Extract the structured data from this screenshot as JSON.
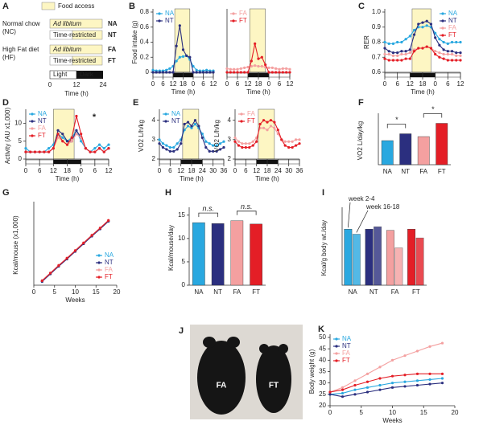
{
  "diagram": {
    "panel": "A",
    "legend": "Food access",
    "groups": [
      {
        "name": "Normal chow",
        "abbr": "(NC)",
        "rows": [
          {
            "label": "Ad libitum",
            "code": "NA"
          },
          {
            "label": "Time-restricted",
            "code": "NT"
          }
        ]
      },
      {
        "name": "High Fat diet",
        "abbr": "(HF)",
        "rows": [
          {
            "label": "Ad libitum",
            "code": "FA"
          },
          {
            "label": "Time-restricted",
            "code": "FT"
          }
        ]
      }
    ],
    "light": "Light",
    "dark": "Dark",
    "ticks": [
      "0",
      "12",
      "24"
    ],
    "x_label": "Time (h)"
  },
  "photo": {
    "panel": "J",
    "labels": [
      "FA",
      "FT"
    ]
  },
  "chart_data": [
    {
      "type": "line",
      "panel": "B",
      "y_label": "Food intake (g)",
      "x_label": "Time (h)",
      "legend": "upper left",
      "x": [
        0,
        2,
        4,
        6,
        8,
        10,
        12,
        14,
        16,
        18,
        20,
        22,
        24,
        26,
        28,
        30,
        32,
        34,
        36
      ],
      "xlim": [
        0,
        36
      ],
      "ylim": [
        0,
        0.8
      ],
      "xticks": [
        0,
        6,
        12,
        18,
        {
          "value": 24,
          "label": "0"
        },
        {
          "value": 30,
          "label": "6"
        },
        {
          "value": 36,
          "label": "12"
        }
      ],
      "yticks": [
        0,
        0.2,
        0.4,
        0.6,
        0.8
      ],
      "food_access": [
        13,
        22
      ],
      "dark": [
        12,
        24
      ],
      "series": [
        {
          "name": "NA",
          "color": "#29a8e0",
          "values": [
            0.03,
            0.02,
            0.02,
            0.02,
            0.03,
            0.05,
            0.08,
            0.15,
            0.2,
            0.21,
            0.22,
            0.17,
            0.08,
            0.03,
            0.02,
            0.02,
            0.03,
            0.02,
            0.02
          ]
        },
        {
          "name": "NT",
          "color": "#2b2f7f",
          "values": [
            0,
            0,
            0,
            0,
            0,
            0,
            0,
            0.35,
            0.62,
            0.3,
            0.22,
            0.2,
            0,
            0,
            0,
            0,
            0,
            0,
            0
          ]
        }
      ]
    },
    {
      "type": "line",
      "legend": "upper left",
      "x_label": "Time (h)",
      "x": [
        0,
        2,
        4,
        6,
        8,
        10,
        12,
        14,
        16,
        18,
        20,
        22,
        24,
        26,
        28,
        30,
        32,
        34,
        36
      ],
      "xlim": [
        0,
        36
      ],
      "ylim": [
        0,
        0.8
      ],
      "xticks": [
        0,
        6,
        12,
        18,
        {
          "value": 24,
          "label": "0"
        },
        {
          "value": 30,
          "label": "6"
        },
        {
          "value": 36,
          "label": "12"
        }
      ],
      "food_access": [
        13,
        22
      ],
      "dark": [
        12,
        24
      ],
      "series": [
        {
          "name": "FA",
          "color": "#f4a0a0",
          "values": [
            0.05,
            0.04,
            0.04,
            0.04,
            0.05,
            0.06,
            0.07,
            0.08,
            0.09,
            0.08,
            0.08,
            0.07,
            0.06,
            0.06,
            0.05,
            0.04,
            0.05,
            0.05,
            0.04
          ]
        },
        {
          "name": "FT",
          "color": "#e41e26",
          "values": [
            0,
            0,
            0,
            0,
            0,
            0,
            0,
            0.15,
            0.38,
            0.18,
            0.2,
            0.1,
            0,
            0,
            0,
            0,
            0,
            0,
            0
          ]
        }
      ]
    },
    {
      "type": "line",
      "panel": "C",
      "y_label": "RER",
      "x_label": "Time (h)",
      "legend": "upper right",
      "x": [
        0,
        2,
        4,
        6,
        8,
        10,
        12,
        14,
        16,
        18,
        20,
        22,
        24,
        26,
        28,
        30,
        32,
        34,
        36
      ],
      "xlim": [
        0,
        36
      ],
      "ylim": [
        0.6,
        1.0
      ],
      "xticks": [
        0,
        6,
        12,
        18,
        {
          "value": 24,
          "label": "0"
        },
        {
          "value": 30,
          "label": "6"
        },
        {
          "value": 36,
          "label": "12"
        }
      ],
      "yticks": [
        0.6,
        0.7,
        0.8,
        0.9,
        {
          "value": 1,
          "label": "1.0"
        }
      ],
      "food_access": [
        13,
        22
      ],
      "dark": [
        12,
        24
      ],
      "series": [
        {
          "name": "NA",
          "color": "#29a8e0",
          "values": [
            0.8,
            0.79,
            0.79,
            0.8,
            0.8,
            0.82,
            0.84,
            0.88,
            0.9,
            0.9,
            0.91,
            0.9,
            0.86,
            0.82,
            0.8,
            0.79,
            0.8,
            0.8,
            0.8
          ]
        },
        {
          "name": "NT",
          "color": "#2b2f7f",
          "values": [
            0.76,
            0.74,
            0.73,
            0.73,
            0.74,
            0.74,
            0.75,
            0.85,
            0.92,
            0.93,
            0.94,
            0.92,
            0.83,
            0.78,
            0.75,
            0.74,
            0.74,
            0.73,
            0.73
          ]
        },
        {
          "name": "FA",
          "color": "#f4a0a0",
          "values": [
            0.72,
            0.72,
            0.71,
            0.71,
            0.72,
            0.72,
            0.73,
            0.75,
            0.76,
            0.76,
            0.77,
            0.76,
            0.74,
            0.73,
            0.72,
            0.72,
            0.72,
            0.71,
            0.71
          ]
        },
        {
          "name": "FT",
          "color": "#e41e26",
          "values": [
            0.69,
            0.68,
            0.68,
            0.68,
            0.68,
            0.69,
            0.69,
            0.74,
            0.76,
            0.76,
            0.77,
            0.76,
            0.72,
            0.7,
            0.69,
            0.68,
            0.68,
            0.68,
            0.68
          ]
        }
      ]
    },
    {
      "type": "line",
      "panel": "D",
      "y_label": "Activity (AU x1,000)",
      "x_label": "Time (h)",
      "legend": "upper left",
      "annotations": [
        "*"
      ],
      "x": [
        0,
        2,
        4,
        6,
        8,
        10,
        12,
        14,
        16,
        18,
        20,
        22,
        24,
        26,
        28,
        30,
        32,
        34,
        36
      ],
      "xlim": [
        0,
        36
      ],
      "ylim": [
        0,
        13
      ],
      "xticks": [
        0,
        6,
        12,
        18,
        {
          "value": 24,
          "label": "0"
        },
        {
          "value": 30,
          "label": "6"
        },
        {
          "value": 36,
          "label": "12"
        }
      ],
      "yticks": [
        0,
        5,
        10
      ],
      "food_access": [
        12,
        21
      ],
      "dark": [
        12,
        24
      ],
      "series": [
        {
          "name": "NA",
          "color": "#29a8e0",
          "values": [
            3,
            2,
            2,
            2,
            2,
            3,
            4,
            7,
            6,
            5,
            6,
            8,
            5,
            3,
            2,
            3,
            4,
            3,
            4
          ]
        },
        {
          "name": "NT",
          "color": "#2b2f7f",
          "values": [
            2,
            2,
            2,
            2,
            2,
            2,
            3,
            8,
            7,
            5,
            5,
            8,
            6,
            3,
            2,
            2,
            3,
            2,
            3
          ]
        },
        {
          "name": "FA",
          "color": "#f4a0a0",
          "values": [
            2,
            2,
            2,
            2,
            2,
            2,
            3,
            6,
            5,
            4,
            5,
            7,
            6,
            3,
            2,
            2,
            3,
            2,
            3
          ]
        },
        {
          "name": "FT",
          "color": "#e41e26",
          "values": [
            2,
            2,
            2,
            2,
            2,
            2,
            3,
            7,
            5,
            4,
            6,
            12,
            7,
            3,
            2,
            2,
            3,
            2,
            3
          ]
        }
      ]
    },
    {
      "type": "line",
      "panel": "E",
      "y_label": "VO2 L/h/kg",
      "x_label": "Time (h)",
      "legend": "upper left",
      "x": [
        0,
        2,
        4,
        6,
        8,
        10,
        12,
        14,
        16,
        18,
        20,
        22,
        24,
        26,
        28,
        30,
        32,
        34,
        36
      ],
      "xlim": [
        0,
        36
      ],
      "ylim": [
        2,
        4.4
      ],
      "xticks": [
        0,
        6,
        12,
        18,
        24,
        30,
        36
      ],
      "yticks": [
        2,
        3,
        4
      ],
      "food_access": [
        13,
        22
      ],
      "dark": [
        12,
        24
      ],
      "series": [
        {
          "name": "NA",
          "color": "#29a8e0",
          "values": [
            3.0,
            2.8,
            2.7,
            2.6,
            2.6,
            2.8,
            3.0,
            3.5,
            3.7,
            3.6,
            3.8,
            3.6,
            3.3,
            2.9,
            2.8,
            2.7,
            2.7,
            2.8,
            2.9
          ]
        },
        {
          "name": "NT",
          "color": "#2b2f7f",
          "values": [
            2.8,
            2.6,
            2.5,
            2.4,
            2.4,
            2.5,
            2.8,
            3.8,
            3.9,
            3.7,
            4.0,
            3.7,
            3.1,
            2.6,
            2.4,
            2.4,
            2.4,
            2.5,
            2.6
          ]
        }
      ]
    },
    {
      "type": "line",
      "y_label": "VO2 L/h/kg",
      "x_label": "Time (h)",
      "legend": "upper left",
      "x": [
        0,
        2,
        4,
        6,
        8,
        10,
        12,
        14,
        16,
        18,
        20,
        22,
        24,
        26,
        28,
        30,
        32,
        34,
        36
      ],
      "xlim": [
        0,
        36
      ],
      "ylim": [
        2,
        4.4
      ],
      "xticks": [
        0,
        6,
        12,
        18,
        24,
        30,
        36
      ],
      "yticks": [
        2,
        3,
        4
      ],
      "food_access": [
        13,
        22
      ],
      "dark": [
        12,
        24
      ],
      "series": [
        {
          "name": "FA",
          "color": "#f4a0a0",
          "values": [
            3.1,
            2.9,
            2.8,
            2.8,
            2.8,
            2.9,
            3.1,
            3.6,
            3.6,
            3.5,
            3.7,
            3.6,
            3.3,
            3.0,
            2.9,
            2.9,
            2.9,
            3.0,
            3.0
          ]
        },
        {
          "name": "FT",
          "color": "#e41e26",
          "values": [
            2.9,
            2.7,
            2.6,
            2.6,
            2.6,
            2.7,
            2.9,
            3.8,
            4.0,
            3.9,
            4.0,
            3.9,
            3.5,
            3.0,
            2.7,
            2.6,
            2.6,
            2.7,
            2.8
          ]
        }
      ]
    },
    {
      "type": "bar",
      "panel": "F",
      "y_label": "VO2 L/day/kg",
      "annotations": [
        "*",
        "*"
      ],
      "categories": [
        "NA",
        "NT",
        "FA",
        "FT"
      ],
      "values": [
        66,
        67.7,
        67,
        70.3
      ],
      "colors": [
        "#29a8e0",
        "#2b2f7f",
        "#f4a0a0",
        "#e41e26"
      ],
      "ylim": [
        60,
        72
      ]
    },
    {
      "type": "line",
      "panel": "G",
      "y_label": "Kcal/mouse (x1,000)",
      "x_label": "Weeks",
      "legend": "lower right",
      "x": [
        2,
        4,
        6,
        8,
        10,
        12,
        14,
        16,
        18
      ],
      "xlim": [
        0,
        20
      ],
      "ylim": [
        0,
        2
      ],
      "xticks": [
        0,
        5,
        10,
        15,
        20
      ],
      "series": [
        {
          "name": "NA",
          "color": "#29a8e0",
          "values": [
            0.1,
            0.29,
            0.48,
            0.66,
            0.85,
            1.04,
            1.23,
            1.41,
            1.6
          ]
        },
        {
          "name": "NT",
          "color": "#2b2f7f",
          "values": [
            0.09,
            0.28,
            0.47,
            0.65,
            0.84,
            1.03,
            1.22,
            1.4,
            1.59
          ]
        },
        {
          "name": "FA",
          "color": "#f4a0a0",
          "values": [
            0.12,
            0.31,
            0.5,
            0.68,
            0.87,
            1.06,
            1.25,
            1.43,
            1.62
          ]
        },
        {
          "name": "FT",
          "color": "#e41e26",
          "values": [
            0.11,
            0.3,
            0.49,
            0.67,
            0.86,
            1.05,
            1.24,
            1.42,
            1.61
          ]
        }
      ]
    },
    {
      "type": "bar",
      "panel": "H",
      "y_label": "Kcal/mouse/day",
      "annotations": [
        "n.s.",
        "n.s."
      ],
      "categories": [
        "NA",
        "NT",
        "FA",
        "FT"
      ],
      "values": [
        13.4,
        13.2,
        13.8,
        13.1
      ],
      "colors": [
        "#29a8e0",
        "#2b2f7f",
        "#f4a0a0",
        "#e41e26"
      ],
      "ylim": [
        0,
        16
      ],
      "yticks": [
        0,
        5,
        10,
        15
      ]
    },
    {
      "type": "grouped_bar",
      "panel": "I",
      "y_label": "Kcal/g body wt./day",
      "categories": [
        "NA",
        "NT",
        "FA",
        "FT"
      ],
      "colors": [
        "#29a8e0",
        "#2b2f7f",
        "#f4a0a0",
        "#e41e26"
      ],
      "ylim": [
        0,
        0.6
      ],
      "series": [
        {
          "name": "week 2-4",
          "values": [
            0.45,
            0.45,
            0.44,
            0.45
          ]
        },
        {
          "name": "week 16-18",
          "values": [
            0.41,
            0.47,
            0.3,
            0.38
          ]
        }
      ]
    },
    {
      "type": "line",
      "panel": "K",
      "y_label": "Body weight (g)",
      "x_label": "Weeks",
      "legend": "upper left",
      "x": [
        0,
        2,
        4,
        6,
        8,
        10,
        12,
        14,
        16,
        18
      ],
      "xlim": [
        0,
        20
      ],
      "ylim": [
        20,
        50
      ],
      "xticks": [
        0,
        5,
        10,
        15,
        20
      ],
      "yticks": [
        20,
        25,
        30,
        35,
        40,
        45,
        50
      ],
      "series": [
        {
          "name": "NA",
          "color": "#29a8e0",
          "values": [
            25,
            25.5,
            27,
            28,
            29,
            30,
            30.5,
            31,
            31.5,
            32
          ]
        },
        {
          "name": "NT",
          "color": "#2b2f7f",
          "values": [
            25,
            24,
            25,
            26,
            27,
            28,
            28.5,
            29,
            29.5,
            30
          ]
        },
        {
          "name": "FA",
          "color": "#f4a0a0",
          "values": [
            26,
            28,
            31,
            34,
            37,
            40,
            42,
            44,
            46,
            47.5
          ]
        },
        {
          "name": "FT",
          "color": "#e41e26",
          "values": [
            26,
            27,
            29,
            30.5,
            32,
            33,
            33.5,
            34,
            34,
            34
          ]
        }
      ]
    }
  ]
}
